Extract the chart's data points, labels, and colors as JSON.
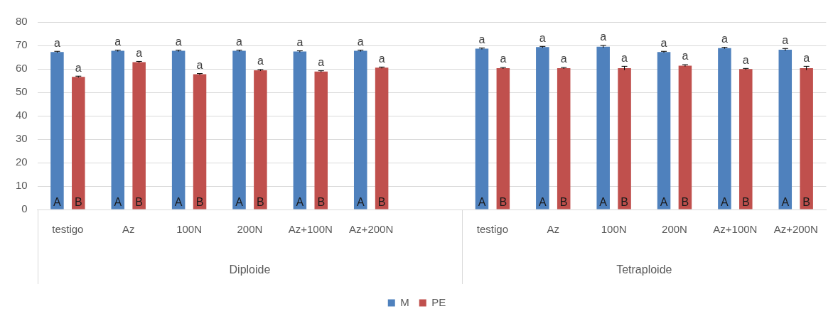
{
  "chart_data": {
    "type": "bar",
    "categories": [
      "testigo",
      "Az",
      "100N",
      "200N",
      "Az+100N",
      "Az+200N",
      null,
      "testigo",
      "Az",
      "100N",
      "200N",
      "Az+100N",
      "Az+200N"
    ],
    "series": [
      {
        "name": "M",
        "color": "#4f81bd",
        "values": [
          67.2,
          67.7,
          67.7,
          67.7,
          67.4,
          67.7,
          null,
          68.6,
          69.3,
          69.5,
          67.2,
          68.9,
          68.2
        ],
        "errors": [
          0.3,
          0.3,
          0.3,
          0.3,
          0.3,
          0.3,
          null,
          0.3,
          0.3,
          0.5,
          0.3,
          0.3,
          0.5
        ],
        "value_labels": [
          "a",
          "a",
          "a",
          "a",
          "a",
          "a",
          null,
          "a",
          "a",
          "a",
          "a",
          "a",
          "a"
        ]
      },
      {
        "name": "PE",
        "color": "#c0504d",
        "values": [
          56.6,
          62.9,
          57.7,
          59.4,
          58.9,
          60.5,
          null,
          60.3,
          60.3,
          60.3,
          61.4,
          59.9,
          60.3
        ],
        "errors": [
          0.3,
          0.3,
          0.3,
          0.3,
          0.3,
          0.3,
          null,
          0.3,
          0.3,
          0.8,
          0.4,
          0.3,
          0.8
        ],
        "value_labels": [
          "a",
          "a",
          "a",
          "a",
          "a",
          "a",
          null,
          "a",
          "a",
          "a",
          "a",
          "a",
          "a"
        ]
      }
    ],
    "annotations": [
      "Diploide",
      "Tetraploide",
      "A",
      "B",
      "A",
      "B",
      "A",
      "B",
      "A",
      "B",
      "A",
      "B",
      "A",
      "B",
      "A",
      "B",
      "A",
      "B",
      "A",
      "B",
      "A",
      "B",
      "A",
      "B",
      "A",
      "B"
    ],
    "ylim": [
      0,
      80
    ],
    "yticks": [
      0,
      10,
      20,
      30,
      40,
      50,
      60,
      70,
      80
    ],
    "grid": "y",
    "legend": "bottom"
  }
}
